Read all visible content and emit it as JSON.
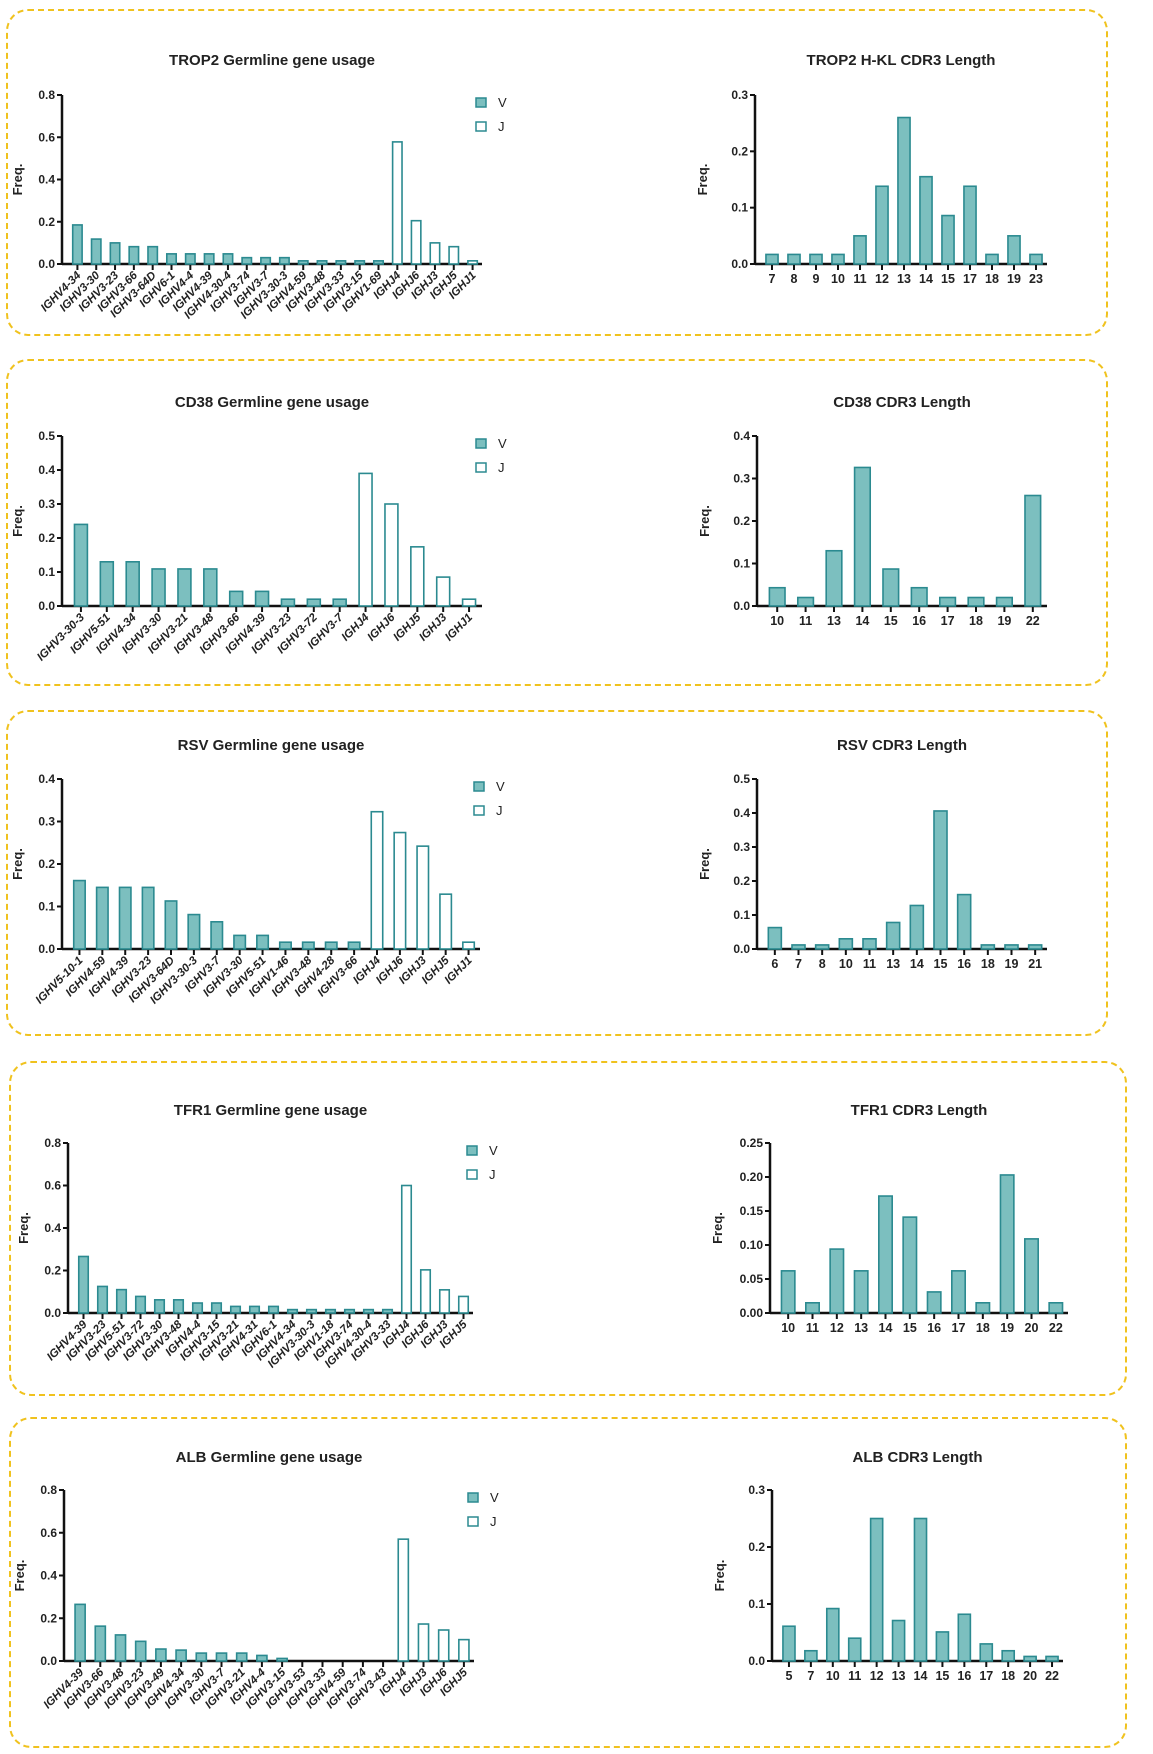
{
  "colors": {
    "bar_fill": "#7cbfbf",
    "bar_stroke": "#2b8a90",
    "panel_border": "#f0c21e"
  },
  "chart_data": [
    {
      "type": "bar",
      "title": "TROP2 Germline gene usage",
      "ylabel": "Freq.",
      "ylim": [
        0,
        0.8
      ],
      "yticks": [
        "0.0",
        "0.2",
        "0.4",
        "0.6",
        "0.8"
      ],
      "categories": [
        "IGHV4-34",
        "IGHV3-30",
        "IGHV3-23",
        "IGHV3-66",
        "IGHV3-64D",
        "IGHV6-1",
        "IGHV4-4",
        "IGHV4-39",
        "IGHV4-30-4",
        "IGHV3-74",
        "IGHV3-7",
        "IGHV3-30-3",
        "IGHV4-59",
        "IGHV3-48",
        "IGHV3-33",
        "IGHV3-15",
        "IGHV1-69",
        "IGHJ4",
        "IGHJ6",
        "IGHJ3",
        "IGHJ5",
        "IGHJ1"
      ],
      "series": [
        {
          "name": "V",
          "values": [
            0.185,
            0.118,
            0.1,
            0.082,
            0.082,
            0.048,
            0.048,
            0.048,
            0.048,
            0.03,
            0.03,
            0.03,
            0.015,
            0.015,
            0.015,
            0.015,
            0.015,
            null,
            null,
            null,
            null,
            null
          ]
        },
        {
          "name": "J",
          "values": [
            null,
            null,
            null,
            null,
            null,
            null,
            null,
            null,
            null,
            null,
            null,
            null,
            null,
            null,
            null,
            null,
            null,
            0.578,
            0.205,
            0.1,
            0.082,
            0.015
          ]
        }
      ],
      "legend": "top-right"
    },
    {
      "type": "bar",
      "title": "TROP2 H-KL CDR3 Length",
      "ylabel": "Freq.",
      "ylim": [
        0,
        0.3
      ],
      "yticks": [
        "0.0",
        "0.1",
        "0.2",
        "0.3"
      ],
      "categories": [
        "7",
        "8",
        "9",
        "10",
        "11",
        "12",
        "13",
        "14",
        "15",
        "17",
        "18",
        "19",
        "23"
      ],
      "series": [
        {
          "values": [
            0.017,
            0.017,
            0.017,
            0.017,
            0.05,
            0.138,
            0.26,
            0.155,
            0.086,
            0.138,
            0.017,
            0.05,
            0.017
          ]
        }
      ]
    },
    {
      "type": "bar",
      "title": "CD38 Germline gene usage",
      "ylabel": "Freq.",
      "ylim": [
        0,
        0.5
      ],
      "yticks": [
        "0.0",
        "0.1",
        "0.2",
        "0.3",
        "0.4",
        "0.5"
      ],
      "categories": [
        "IGHV3-30-3",
        "IGHV5-51",
        "IGHV4-34",
        "IGHV3-30",
        "IGHV3-21",
        "IGHV3-48",
        "IGHV3-66",
        "IGHV4-39",
        "IGHV3-23",
        "IGHV3-72",
        "IGHV3-7",
        "IGHJ4",
        "IGHJ6",
        "IGHJ5",
        "IGHJ3",
        "IGHJ1"
      ],
      "series": [
        {
          "name": "V",
          "values": [
            0.24,
            0.13,
            0.13,
            0.109,
            0.109,
            0.109,
            0.043,
            0.043,
            0.02,
            0.02,
            0.02,
            null,
            null,
            null,
            null,
            null
          ]
        },
        {
          "name": "J",
          "values": [
            null,
            null,
            null,
            null,
            null,
            null,
            null,
            null,
            null,
            null,
            null,
            0.39,
            0.3,
            0.174,
            0.085,
            0.02
          ]
        }
      ],
      "legend": "top-right"
    },
    {
      "type": "bar",
      "title": "CD38 CDR3 Length",
      "ylabel": "Freq.",
      "ylim": [
        0,
        0.4
      ],
      "yticks": [
        "0.0",
        "0.1",
        "0.2",
        "0.3",
        "0.4"
      ],
      "categories": [
        "10",
        "11",
        "13",
        "14",
        "15",
        "16",
        "17",
        "18",
        "19",
        "22"
      ],
      "series": [
        {
          "values": [
            0.043,
            0.02,
            0.13,
            0.326,
            0.087,
            0.043,
            0.02,
            0.02,
            0.02,
            0.26
          ]
        }
      ]
    },
    {
      "type": "bar",
      "title": "RSV Germline gene usage",
      "ylabel": "Freq.",
      "ylim": [
        0,
        0.4
      ],
      "yticks": [
        "0.0",
        "0.1",
        "0.2",
        "0.3",
        "0.4"
      ],
      "categories": [
        "IGHV5-10-1",
        "IGHV4-59",
        "IGHV4-39",
        "IGHV3-23",
        "IGHV3-64D",
        "IGHV3-30-3",
        "IGHV3-7",
        "IGHV3-30",
        "IGHV5-51",
        "IGHV1-46",
        "IGHV3-48",
        "IGHV4-28",
        "IGHV3-66",
        "IGHJ4",
        "IGHJ6",
        "IGHJ3",
        "IGHJ5",
        "IGHJ1"
      ],
      "series": [
        {
          "name": "V",
          "values": [
            0.161,
            0.145,
            0.145,
            0.145,
            0.113,
            0.081,
            0.064,
            0.032,
            0.032,
            0.016,
            0.016,
            0.016,
            0.016,
            null,
            null,
            null,
            null,
            null
          ]
        },
        {
          "name": "J",
          "values": [
            null,
            null,
            null,
            null,
            null,
            null,
            null,
            null,
            null,
            null,
            null,
            null,
            null,
            0.323,
            0.274,
            0.242,
            0.129,
            0.016
          ]
        }
      ],
      "legend": "top-right"
    },
    {
      "type": "bar",
      "title": "RSV CDR3 Length",
      "ylabel": "Freq.",
      "ylim": [
        0,
        0.5
      ],
      "yticks": [
        "0.0",
        "0.1",
        "0.2",
        "0.3",
        "0.4",
        "0.5"
      ],
      "categories": [
        "6",
        "7",
        "8",
        "10",
        "11",
        "13",
        "14",
        "15",
        "16",
        "18",
        "19",
        "21"
      ],
      "series": [
        {
          "values": [
            0.063,
            0.012,
            0.012,
            0.03,
            0.03,
            0.078,
            0.128,
            0.406,
            0.16,
            0.012,
            0.012,
            0.012
          ]
        }
      ]
    },
    {
      "type": "bar",
      "title": "TFR1 Germline gene usage",
      "ylabel": "Freq.",
      "ylim": [
        0,
        0.8
      ],
      "yticks": [
        "0.0",
        "0.2",
        "0.4",
        "0.6",
        "0.8"
      ],
      "categories": [
        "IGHV4-39",
        "IGHV3-23",
        "IGHV5-51",
        "IGHV3-72",
        "IGHV3-30",
        "IGHV3-48",
        "IGHV4-4",
        "IGHV3-15",
        "IGHV3-21",
        "IGHV4-31",
        "IGHV6-1",
        "IGHV4-34",
        "IGHV3-30-3",
        "IGHV1-18",
        "IGHV3-74",
        "IGHV4-30-4",
        "IGHV3-33",
        "IGHJ4",
        "IGHJ6",
        "IGHJ3",
        "IGHJ5"
      ],
      "series": [
        {
          "name": "V",
          "values": [
            0.266,
            0.125,
            0.11,
            0.078,
            0.062,
            0.062,
            0.047,
            0.047,
            0.031,
            0.031,
            0.031,
            0.016,
            0.016,
            0.016,
            0.016,
            0.016,
            0.016,
            null,
            null,
            null,
            null
          ]
        },
        {
          "name": "J",
          "values": [
            null,
            null,
            null,
            null,
            null,
            null,
            null,
            null,
            null,
            null,
            null,
            null,
            null,
            null,
            null,
            null,
            null,
            0.6,
            0.203,
            0.109,
            0.078
          ]
        }
      ],
      "legend": "top-right"
    },
    {
      "type": "bar",
      "title": "TFR1 CDR3 Length",
      "ylabel": "Freq.",
      "ylim": [
        0,
        0.25
      ],
      "yticks": [
        "0.00",
        "0.05",
        "0.10",
        "0.15",
        "0.20",
        "0.25"
      ],
      "categories": [
        "10",
        "11",
        "12",
        "13",
        "14",
        "15",
        "16",
        "17",
        "18",
        "19",
        "20",
        "22"
      ],
      "series": [
        {
          "values": [
            0.062,
            0.015,
            0.094,
            0.062,
            0.172,
            0.141,
            0.031,
            0.062,
            0.015,
            0.203,
            0.109,
            0.015
          ]
        }
      ]
    },
    {
      "type": "bar",
      "title": "ALB Germline gene usage",
      "ylabel": "Freq.",
      "ylim": [
        0,
        0.8
      ],
      "yticks": [
        "0.0",
        "0.2",
        "0.4",
        "0.6",
        "0.8"
      ],
      "categories": [
        "IGHV4-39",
        "IGHV3-66",
        "IGHV3-48",
        "IGHV3-23",
        "IGHV3-49",
        "IGHV4-34",
        "IGHV3-30",
        "IGHV3-7",
        "IGHV3-21",
        "IGHV4-4",
        "IGHV3-15",
        "IGHV3-53",
        "IGHV3-33",
        "IGHV4-59",
        "IGHV3-74",
        "IGHV3-43",
        "IGHJ4",
        "IGHJ3",
        "IGHJ6",
        "IGHJ5"
      ],
      "series": [
        {
          "name": "V",
          "values": [
            0.265,
            0.163,
            0.122,
            0.092,
            0.056,
            0.051,
            0.037,
            0.037,
            0.037,
            0.026,
            0.012,
            0,
            0,
            0,
            0,
            0,
            null,
            null,
            null,
            null
          ]
        },
        {
          "name": "J",
          "values": [
            null,
            null,
            null,
            null,
            null,
            null,
            null,
            null,
            null,
            null,
            null,
            null,
            null,
            null,
            null,
            null,
            0.57,
            0.173,
            0.145,
            0.1
          ]
        }
      ],
      "legend": "top-right"
    },
    {
      "type": "bar",
      "title": "ALB CDR3 Length",
      "ylabel": "Freq.",
      "ylim": [
        0,
        0.3
      ],
      "yticks": [
        "0.0",
        "0.1",
        "0.2",
        "0.3"
      ],
      "categories": [
        "5",
        "7",
        "10",
        "11",
        "12",
        "13",
        "14",
        "15",
        "16",
        "17",
        "18",
        "20",
        "22"
      ],
      "series": [
        {
          "values": [
            0.061,
            0.018,
            0.092,
            0.04,
            0.25,
            0.071,
            0.25,
            0.051,
            0.082,
            0.03,
            0.018,
            0.008,
            0.008
          ]
        }
      ]
    }
  ]
}
